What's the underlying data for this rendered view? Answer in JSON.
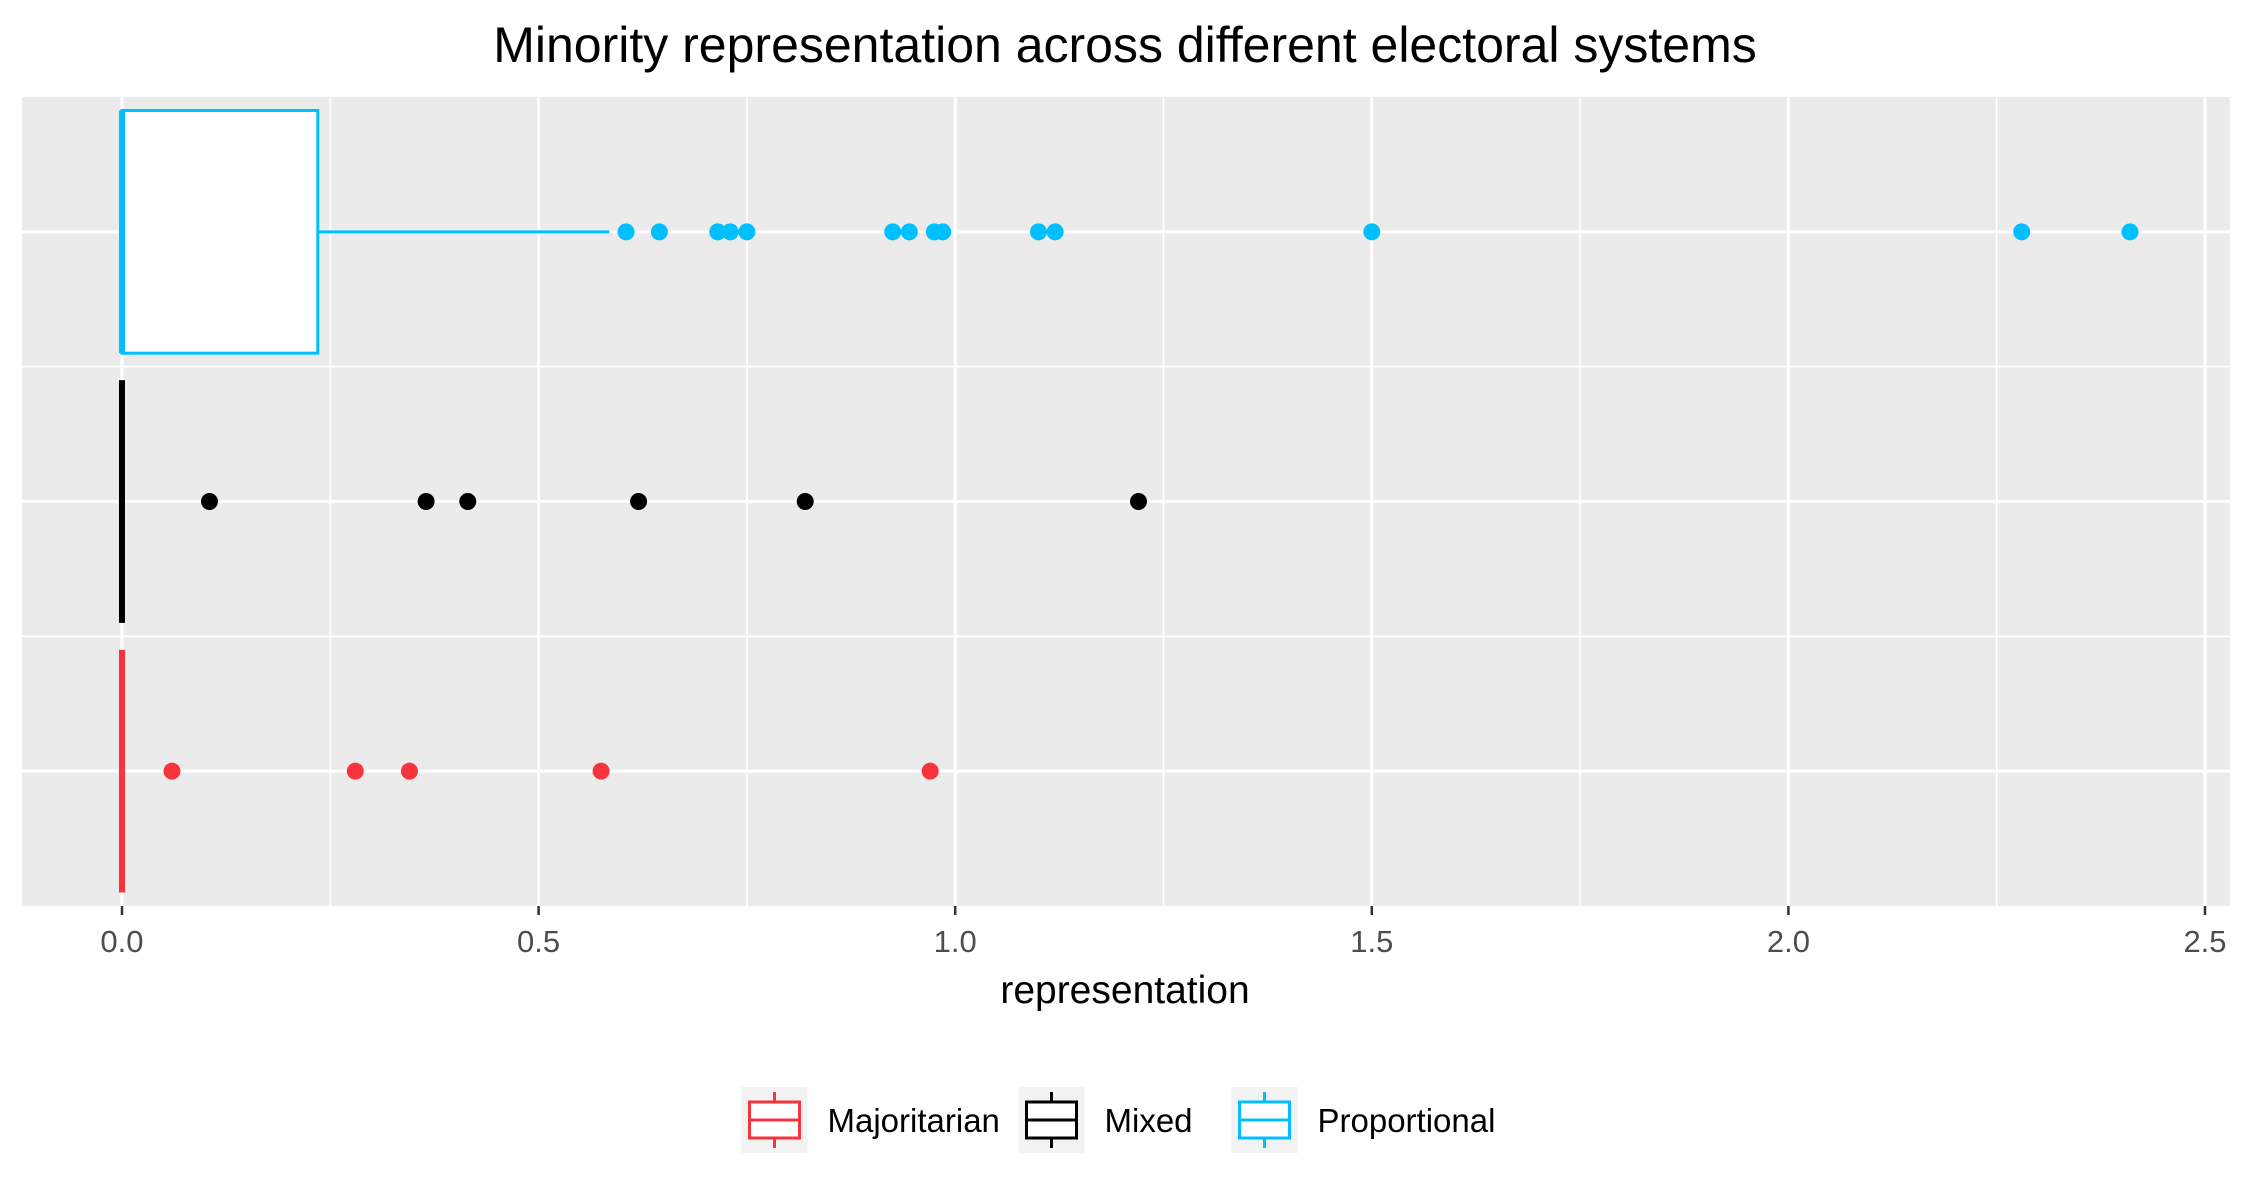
{
  "chart_data": {
    "type": "boxplot",
    "orientation": "horizontal",
    "title": "Minority representation across different electoral systems",
    "xlabel": "representation",
    "ylabel": "",
    "xlim": [
      -0.12,
      2.53
    ],
    "x_ticks": [
      0.0,
      0.5,
      1.0,
      1.5,
      2.0,
      2.5
    ],
    "x_tick_labels": [
      "0.0",
      "0.5",
      "1.0",
      "1.5",
      "2.0",
      "2.5"
    ],
    "y_tick_labels": [],
    "grid": true,
    "legend": {
      "position": "bottom",
      "title": ""
    },
    "series": [
      {
        "name": "Majoritarian",
        "color": "#F8333C",
        "q1": 0.0,
        "median": 0.0,
        "q3": 0.0,
        "whisker_low": 0.0,
        "whisker_high": 0.0,
        "outliers": [
          0.06,
          0.28,
          0.345,
          0.575,
          0.97
        ]
      },
      {
        "name": "Mixed",
        "color": "#000000",
        "q1": 0.0,
        "median": 0.0,
        "q3": 0.0,
        "whisker_low": 0.0,
        "whisker_high": 0.0,
        "outliers": [
          0.105,
          0.365,
          0.415,
          0.62,
          0.82,
          1.22
        ]
      },
      {
        "name": "Proportional",
        "color": "#00BFFF",
        "q1": 0.0,
        "median": 0.0,
        "q3": 0.235,
        "whisker_low": 0.0,
        "whisker_high": 0.585,
        "outliers": [
          0.605,
          0.645,
          0.715,
          0.73,
          0.75,
          0.925,
          0.945,
          0.975,
          0.985,
          1.1,
          1.12,
          1.5,
          2.28,
          2.41
        ]
      }
    ]
  }
}
